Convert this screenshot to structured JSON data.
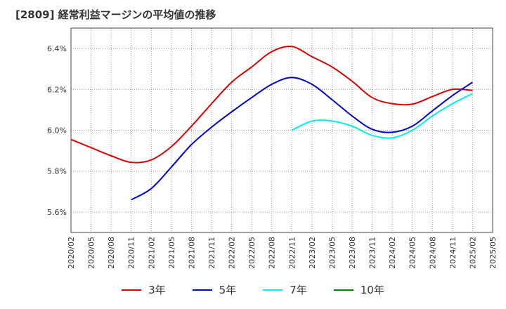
{
  "chart_data": {
    "type": "line",
    "title": "[2809]  経常利益マージンの平均値の推移",
    "y_ticks": [
      "5.6%",
      "5.8%",
      "6.0%",
      "6.2%",
      "6.4%"
    ],
    "ylim": [
      5.5,
      6.5
    ],
    "x_ticks": [
      "2020/02",
      "2020/05",
      "2020/08",
      "2020/11",
      "2021/02",
      "2021/05",
      "2021/08",
      "2021/11",
      "2022/02",
      "2022/05",
      "2022/08",
      "2022/11",
      "2023/02",
      "2023/05",
      "2023/08",
      "2023/11",
      "2024/02",
      "2024/05",
      "2024/08",
      "2024/11",
      "2025/02",
      "2025/05"
    ],
    "grid": true,
    "legend_position": "bottom",
    "series": [
      {
        "name": "3年",
        "color": "#dd0000",
        "x": [
          "2020/02",
          "2020/05",
          "2020/08",
          "2020/11",
          "2021/02",
          "2021/05",
          "2021/08",
          "2021/11",
          "2022/02",
          "2022/05",
          "2022/08",
          "2022/11",
          "2023/02",
          "2023/05",
          "2023/08",
          "2023/11",
          "2024/02",
          "2024/05",
          "2024/08",
          "2024/11",
          "2025/02"
        ],
        "values": [
          5.955,
          5.915,
          5.875,
          5.843,
          5.855,
          5.92,
          6.02,
          6.13,
          6.235,
          6.31,
          6.385,
          6.41,
          6.36,
          6.31,
          6.24,
          6.16,
          6.13,
          6.128,
          6.165,
          6.2,
          6.195
        ]
      },
      {
        "name": "5年",
        "color": "#0000cc",
        "x": [
          "2020/11",
          "2021/02",
          "2021/05",
          "2021/08",
          "2021/11",
          "2022/02",
          "2022/05",
          "2022/08",
          "2022/11",
          "2023/02",
          "2023/05",
          "2023/08",
          "2023/11",
          "2024/02",
          "2024/05",
          "2024/08",
          "2024/11",
          "2025/02"
        ],
        "values": [
          5.66,
          5.715,
          5.82,
          5.93,
          6.015,
          6.09,
          6.16,
          6.225,
          6.258,
          6.225,
          6.15,
          6.07,
          6.005,
          5.99,
          6.02,
          6.095,
          6.17,
          6.235
        ]
      },
      {
        "name": "7年",
        "color": "#00eeee",
        "x": [
          "2022/11",
          "2023/02",
          "2023/05",
          "2023/08",
          "2023/11",
          "2024/02",
          "2024/05",
          "2024/08",
          "2024/11",
          "2025/02"
        ],
        "values": [
          6.0,
          6.045,
          6.045,
          6.02,
          5.975,
          5.963,
          6.0,
          6.07,
          6.13,
          6.18
        ]
      },
      {
        "name": "10年",
        "color": "#008800",
        "x": [],
        "values": []
      }
    ]
  }
}
